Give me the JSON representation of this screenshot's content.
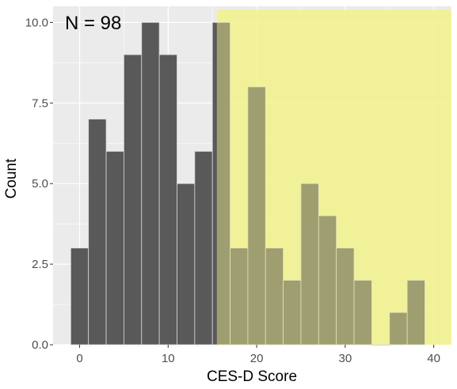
{
  "chart_data": {
    "type": "bar",
    "title": "",
    "annotation": "N = 98",
    "xlabel": "CES-D Score",
    "ylabel": "Count",
    "x_ticks": [
      "0",
      "10",
      "20",
      "30",
      "40"
    ],
    "y_ticks": [
      "0.0",
      "2.5",
      "5.0",
      "7.5",
      "10.0"
    ],
    "xlim": [
      -3,
      42
    ],
    "ylim": [
      0,
      10.5
    ],
    "bin_width": 2,
    "bin_centers": [
      0,
      2,
      4,
      6,
      8,
      10,
      12,
      14,
      16,
      18,
      20,
      22,
      24,
      26,
      28,
      30,
      32,
      34,
      36,
      38
    ],
    "values": [
      3,
      7,
      6,
      9,
      10,
      9,
      5,
      6,
      10,
      3,
      8,
      3,
      2,
      5,
      4,
      3,
      2,
      0,
      1,
      2
    ],
    "highlight_region": {
      "x_start": 15.5,
      "x_end": 42,
      "color": "#f2f28c"
    },
    "bar_color": "#595959",
    "bar_edge_color": "#d9d9d9",
    "panel_color": "#ebebeb",
    "grid": true
  }
}
